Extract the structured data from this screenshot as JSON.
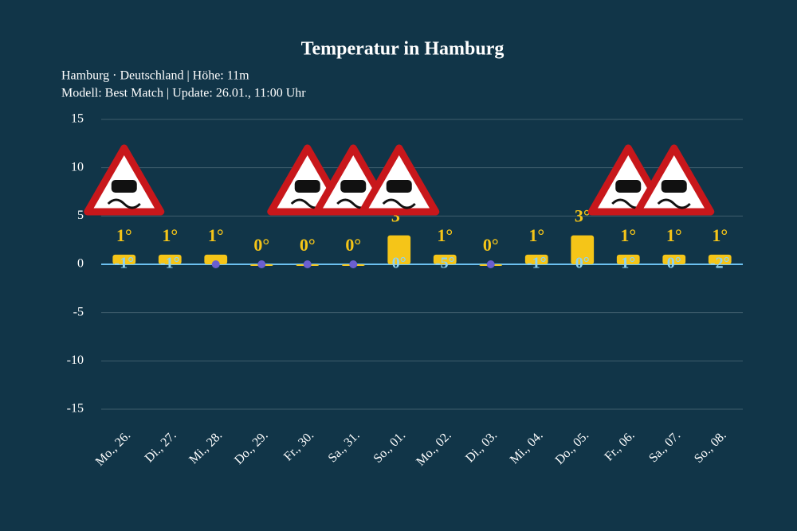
{
  "chart_data": {
    "type": "bar",
    "title": "Temperatur in Hamburg",
    "subtitle": [
      "Hamburg · Deutschland | Höhe: 11m",
      "Modell: Best Match | Update: 26.01., 11:00 Uhr"
    ],
    "categories": [
      "Mo., 26.",
      "Di., 27.",
      "Mi., 28.",
      "Do., 29.",
      "Fr., 30.",
      "Sa., 31.",
      "So., 01.",
      "Mo., 02.",
      "Di., 03.",
      "Mi., 04.",
      "Do., 05.",
      "Fr., 06.",
      "Sa., 07.",
      "So., 08."
    ],
    "values": [
      1,
      1,
      1,
      0,
      0,
      0,
      3,
      1,
      0,
      1,
      3,
      1,
      1,
      1
    ],
    "value_labels": [
      "1°",
      "1°",
      "1°",
      "0°",
      "0°",
      "0°",
      "3°",
      "1°",
      "0°",
      "1°",
      "3°",
      "1°",
      "1°",
      "1°"
    ],
    "min_values": [
      -1,
      -1,
      null,
      null,
      null,
      null,
      0,
      -5,
      null,
      -1,
      0,
      1,
      0,
      -2
    ],
    "min_value_labels": [
      "-1°",
      "-1°",
      null,
      null,
      null,
      null,
      "0°",
      "-5°",
      null,
      "-1°",
      "0°",
      "1°",
      "0°",
      "-2°"
    ],
    "color": "#f5c518",
    "min_color": "#8fd3f0",
    "ylim": [
      -15,
      15
    ],
    "yticks": [
      -15,
      -10,
      -5,
      0,
      5,
      10,
      15
    ],
    "grid": true
  }
}
